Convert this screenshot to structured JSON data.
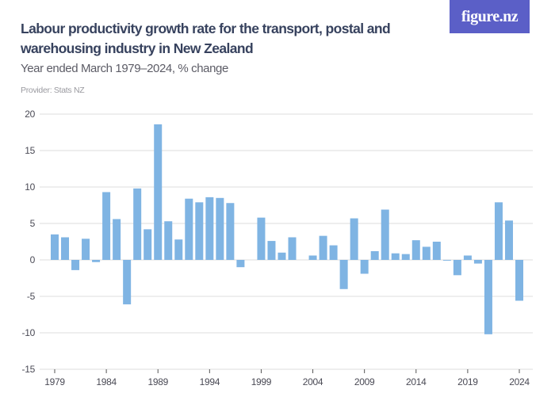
{
  "header": {
    "title": "Labour productivity growth rate for the transport, postal and warehousing industry in New Zealand",
    "subtitle": "Year ended March 1979–2024, % change",
    "provider": "Provider: Stats NZ",
    "logo_text": "figure.nz"
  },
  "colors": {
    "bar": "#7fb4e3",
    "grid": "#e4e4e4",
    "logo_bg": "#5b5fc7",
    "title": "#37425e"
  },
  "chart_data": {
    "type": "bar",
    "title": "Labour productivity growth rate for the transport, postal and warehousing industry in New Zealand",
    "subtitle": "Year ended March 1979–2024, % change",
    "ylim": [
      -15,
      20
    ],
    "yticks": [
      20,
      15,
      10,
      5,
      0,
      -5,
      -10,
      -15
    ],
    "xtick_labels": [
      "1979",
      "1984",
      "1989",
      "1994",
      "1999",
      "2004",
      "2009",
      "2014",
      "2019",
      "2024"
    ],
    "grid": true,
    "categories": [
      1979,
      1980,
      1981,
      1982,
      1983,
      1984,
      1985,
      1986,
      1987,
      1988,
      1989,
      1990,
      1991,
      1992,
      1993,
      1994,
      1995,
      1996,
      1997,
      1998,
      1999,
      2000,
      2001,
      2002,
      2003,
      2004,
      2005,
      2006,
      2007,
      2008,
      2009,
      2010,
      2011,
      2012,
      2013,
      2014,
      2015,
      2016,
      2017,
      2018,
      2019,
      2020,
      2021,
      2022,
      2023,
      2024
    ],
    "values": [
      3.5,
      3.1,
      -1.4,
      2.9,
      -0.3,
      9.3,
      5.6,
      -6.1,
      9.8,
      4.2,
      18.6,
      5.3,
      2.8,
      8.4,
      7.9,
      8.6,
      8.5,
      7.8,
      -1.0,
      0,
      5.8,
      2.6,
      1.0,
      3.1,
      0,
      0.6,
      3.3,
      2.0,
      -4.0,
      5.7,
      -1.9,
      1.2,
      6.9,
      0.9,
      0.8,
      2.7,
      1.8,
      2.5,
      -0.1,
      -2.1,
      0.6,
      -0.5,
      -10.2,
      7.9,
      5.4,
      -5.6
    ]
  }
}
